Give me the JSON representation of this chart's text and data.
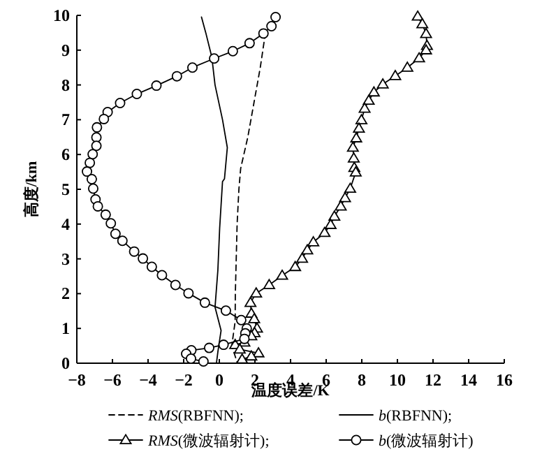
{
  "chart_data": {
    "type": "line",
    "xlabel": "温度误差/K",
    "ylabel": "高度/km",
    "xlim": [
      -8,
      16
    ],
    "ylim": [
      0,
      10
    ],
    "xticks": [
      -8,
      -6,
      -4,
      -2,
      0,
      2,
      4,
      6,
      8,
      10,
      12,
      14,
      16
    ],
    "yticks": [
      0,
      1,
      2,
      3,
      4,
      5,
      6,
      7,
      8,
      9,
      10
    ],
    "legend": "bottom",
    "grid": false,
    "series": [
      {
        "name": "*RMS*(RBFNN);",
        "color": "#000000",
        "line_style": "dashed",
        "marker": "none",
        "x": [
          2.59,
          2.3,
          1.95,
          1.6,
          1.2,
          1.1,
          1.0,
          0.95,
          0.9,
          0.89,
          0.7,
          1.02
        ],
        "values": [
          9.5,
          8.5,
          7.5,
          6.5,
          5.6,
          5.0,
          4.0,
          3.0,
          2.0,
          1.2,
          0.5,
          0
        ]
      },
      {
        "name": "*b*(RBFNN);",
        "color": "#000000",
        "line_style": "solid",
        "marker": "none",
        "x": [
          -1.0,
          -0.76,
          -0.42,
          -0.24,
          0.18,
          0.45,
          0.29,
          0.18,
          0.02,
          -0.08,
          -0.24,
          0.1,
          -0.08,
          -0.16
        ],
        "values": [
          9.95,
          9.5,
          8.8,
          8.0,
          7.0,
          6.2,
          5.3,
          5.22,
          3.88,
          2.68,
          1.61,
          0.94,
          0.33,
          0
        ]
      },
      {
        "name": "*RMS*(微波辐射计);",
        "color": "#000000",
        "line_style": "solid",
        "marker": "triangle",
        "x": [
          11.14,
          11.4,
          11.61,
          11.66,
          11.61,
          11.22,
          10.56,
          9.88,
          9.18,
          8.68,
          8.39,
          8.16,
          7.98,
          7.84,
          7.69,
          7.5,
          7.55,
          7.58,
          7.66,
          7.35,
          7.06,
          6.82,
          6.46,
          6.25,
          5.91,
          5.28,
          4.94,
          4.65,
          4.26,
          3.53,
          2.8,
          2.07,
          1.75,
          1.8,
          1.96,
          2.12,
          1.98,
          1.8,
          1.41,
          0.89,
          1.15,
          2.2,
          1.8,
          1.28
        ],
        "values": [
          9.97,
          9.75,
          9.47,
          9.13,
          9.0,
          8.77,
          8.5,
          8.26,
          8.02,
          7.79,
          7.55,
          7.32,
          6.99,
          6.75,
          6.47,
          6.2,
          5.89,
          5.62,
          5.49,
          5.02,
          4.75,
          4.51,
          4.22,
          3.98,
          3.75,
          3.48,
          3.25,
          3.01,
          2.77,
          2.52,
          2.25,
          2.01,
          1.74,
          1.43,
          1.27,
          1.0,
          0.87,
          0.78,
          0.6,
          0.53,
          0.4,
          0.29,
          0.2,
          0.11
        ]
      },
      {
        "name": "*b*(微波辐射计)",
        "color": "#000000",
        "line_style": "solid",
        "marker": "circle",
        "x": [
          3.16,
          2.93,
          2.48,
          1.7,
          0.76,
          -0.29,
          -1.51,
          -2.38,
          -3.53,
          -4.63,
          -5.57,
          -6.27,
          -6.48,
          -6.87,
          -6.9,
          -6.9,
          -7.11,
          -7.27,
          -7.43,
          -7.16,
          -7.08,
          -6.95,
          -6.82,
          -6.38,
          -6.09,
          -5.83,
          -5.44,
          -4.78,
          -4.29,
          -3.79,
          -3.22,
          -2.46,
          -1.73,
          -0.81,
          0.37,
          1.23,
          1.54,
          1.46,
          1.41,
          0.24,
          -0.57,
          -1.57,
          -1.86,
          -1.59,
          -0.89
        ],
        "values": [
          9.95,
          9.69,
          9.48,
          9.2,
          8.97,
          8.76,
          8.5,
          8.25,
          7.98,
          7.74,
          7.48,
          7.22,
          7.02,
          6.78,
          6.49,
          6.25,
          6.01,
          5.76,
          5.51,
          5.29,
          5.02,
          4.71,
          4.51,
          4.27,
          4.02,
          3.72,
          3.52,
          3.21,
          3.01,
          2.77,
          2.53,
          2.25,
          2.01,
          1.74,
          1.51,
          1.24,
          1.0,
          0.86,
          0.7,
          0.53,
          0.44,
          0.37,
          0.27,
          0.13,
          0.05
        ]
      }
    ]
  }
}
